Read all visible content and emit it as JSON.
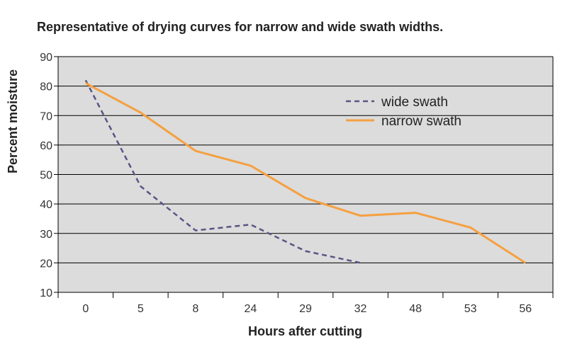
{
  "chart_data": {
    "type": "line",
    "title": "Representative of drying curves for narrow and wide swath widths.",
    "xlabel": "Hours after cutting",
    "ylabel": "Percent moisture",
    "categories": [
      "0",
      "5",
      "8",
      "24",
      "29",
      "32",
      "48",
      "53",
      "56"
    ],
    "ylim": [
      10,
      90
    ],
    "yticks": [
      10,
      20,
      30,
      40,
      50,
      60,
      70,
      80,
      90
    ],
    "grid": true,
    "legend_position": "top-right",
    "series": [
      {
        "name": "wide swath",
        "style": "dashed",
        "color": "#5a5585",
        "values": [
          82,
          46,
          31,
          33,
          24,
          20,
          null,
          null,
          null
        ]
      },
      {
        "name": "narrow swath",
        "style": "solid",
        "color": "#f5a040",
        "values": [
          81,
          71,
          58,
          53,
          42,
          36,
          37,
          32,
          20
        ]
      }
    ],
    "plot_background": "#dcdcdc"
  }
}
